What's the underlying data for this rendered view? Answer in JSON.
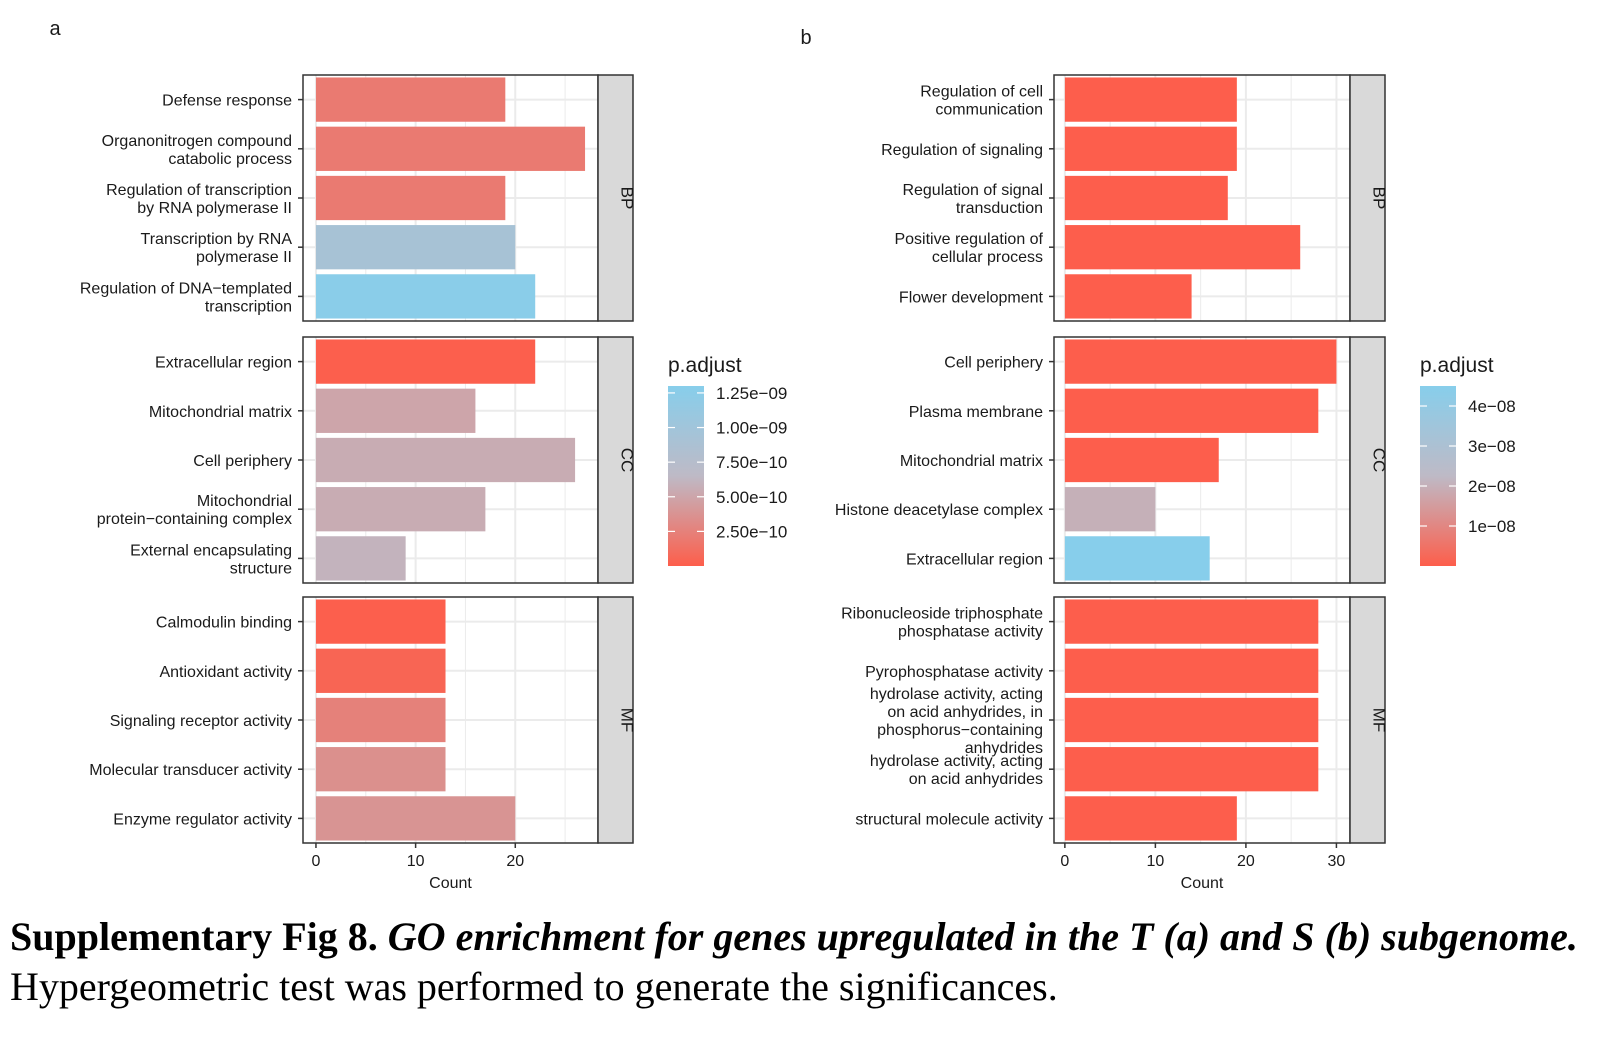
{
  "colors": {
    "low": "#fd5e4b",
    "mid": "#bebac6",
    "high": "#87ceeb",
    "strip": "#d9d9d9",
    "grid": "#ebebeb"
  },
  "caption": {
    "label": "Supplementary Fig 8.",
    "title": "GO enrichment for genes upregulated in the T (a) and S (b) subgenome.",
    "body": "Hypergeometric test was performed to generate the significances."
  },
  "chart_data": [
    {
      "type": "bar",
      "panel_label": "a",
      "orientation": "horizontal",
      "xlabel": "Count",
      "xticks": [
        0,
        10,
        20
      ],
      "xlim": [
        -1.3,
        28.3
      ],
      "grid": true,
      "legend": {
        "title": "p.adjust",
        "placement": "right",
        "range": [
          0,
          1.3e-09
        ],
        "ticks": [
          {
            "value": 1.25e-09,
            "label": "1.25e−09"
          },
          {
            "value": 1e-09,
            "label": "1.00e−09"
          },
          {
            "value": 7.5e-10,
            "label": "7.50e−10"
          },
          {
            "value": 5e-10,
            "label": "5.00e−10"
          },
          {
            "value": 2.5e-10,
            "label": "2.50e−10"
          }
        ]
      },
      "facets": [
        {
          "name": "BP",
          "categories": [
            {
              "label": [
                "Defense response"
              ],
              "count": 19,
              "p_adjust": 2e-10
            },
            {
              "label": [
                "Organonitrogen compound",
                "catabolic process"
              ],
              "count": 27,
              "p_adjust": 2e-10
            },
            {
              "label": [
                "Regulation of transcription",
                "by RNA polymerase II"
              ],
              "count": 19,
              "p_adjust": 2e-10
            },
            {
              "label": [
                "Transcription by RNA",
                "polymerase II"
              ],
              "count": 20,
              "p_adjust": 9.2e-10
            },
            {
              "label": [
                "Regulation of DNA−templated",
                "transcription"
              ],
              "count": 22,
              "p_adjust": 1.26e-09
            }
          ]
        },
        {
          "name": "CC",
          "categories": [
            {
              "label": [
                "Extracellular region"
              ],
              "count": 22,
              "p_adjust": 1e-11
            },
            {
              "label": [
                "Mitochondrial matrix"
              ],
              "count": 16,
              "p_adjust": 5e-10
            },
            {
              "label": [
                "Cell periphery"
              ],
              "count": 26,
              "p_adjust": 5.5e-10
            },
            {
              "label": [
                "Mitochondrial",
                "protein−containing complex"
              ],
              "count": 17,
              "p_adjust": 5.5e-10
            },
            {
              "label": [
                "External encapsulating",
                "structure"
              ],
              "count": 9,
              "p_adjust": 6e-10
            }
          ]
        },
        {
          "name": "MF",
          "categories": [
            {
              "label": [
                "Calmodulin binding"
              ],
              "count": 13,
              "p_adjust": 1e-11
            },
            {
              "label": [
                "Antioxidant activity"
              ],
              "count": 13,
              "p_adjust": 5e-11
            },
            {
              "label": [
                "Signaling receptor activity"
              ],
              "count": 13,
              "p_adjust": 2.5e-10
            },
            {
              "label": [
                "Molecular transducer activity"
              ],
              "count": 13,
              "p_adjust": 3.5e-10
            },
            {
              "label": [
                "Enzyme regulator activity"
              ],
              "count": 20,
              "p_adjust": 3.8e-10
            }
          ]
        }
      ]
    },
    {
      "type": "bar",
      "panel_label": "b",
      "orientation": "horizontal",
      "xlabel": "Count",
      "xticks": [
        0,
        10,
        20,
        30
      ],
      "xlim": [
        -1.2,
        31.5
      ],
      "grid": true,
      "legend": {
        "title": "p.adjust",
        "placement": "right",
        "range": [
          0,
          4.5e-08
        ],
        "ticks": [
          {
            "value": 4e-08,
            "label": "4e−08"
          },
          {
            "value": 3e-08,
            "label": "3e−08"
          },
          {
            "value": 2e-08,
            "label": "2e−08"
          },
          {
            "value": 1e-08,
            "label": "1e−08"
          }
        ]
      },
      "facets": [
        {
          "name": "BP",
          "categories": [
            {
              "label": [
                "Regulation of cell",
                "communication"
              ],
              "count": 19,
              "p_adjust": 1e-10
            },
            {
              "label": [
                "Regulation of signaling"
              ],
              "count": 19,
              "p_adjust": 1e-10
            },
            {
              "label": [
                "Regulation of signal",
                "transduction"
              ],
              "count": 18,
              "p_adjust": 1e-10
            },
            {
              "label": [
                "Positive regulation of",
                "cellular process"
              ],
              "count": 26,
              "p_adjust": 1e-10
            },
            {
              "label": [
                "Flower development"
              ],
              "count": 14,
              "p_adjust": 1e-10
            }
          ]
        },
        {
          "name": "CC",
          "categories": [
            {
              "label": [
                "Cell periphery"
              ],
              "count": 30,
              "p_adjust": 1e-10
            },
            {
              "label": [
                "Plasma membrane"
              ],
              "count": 28,
              "p_adjust": 1e-10
            },
            {
              "label": [
                "Mitochondrial matrix"
              ],
              "count": 17,
              "p_adjust": 1e-10
            },
            {
              "label": [
                "Histone deacetylase complex"
              ],
              "count": 10,
              "p_adjust": 2e-08
            },
            {
              "label": [
                "Extracellular region"
              ],
              "count": 16,
              "p_adjust": 4.5e-08
            }
          ]
        },
        {
          "name": "MF",
          "categories": [
            {
              "label": [
                "Ribonucleoside triphosphate",
                "phosphatase activity"
              ],
              "count": 28,
              "p_adjust": 1e-10
            },
            {
              "label": [
                "Pyrophosphatase activity"
              ],
              "count": 28,
              "p_adjust": 1e-10
            },
            {
              "label": [
                "hydrolase activity, acting",
                "on acid anhydrides, in",
                "phosphorus−containing",
                "anhydrides"
              ],
              "count": 28,
              "p_adjust": 1e-10
            },
            {
              "label": [
                "hydrolase activity, acting",
                "on acid anhydrides"
              ],
              "count": 28,
              "p_adjust": 1e-10
            },
            {
              "label": [
                "structural molecule activity"
              ],
              "count": 19,
              "p_adjust": 1e-10
            }
          ]
        }
      ]
    }
  ]
}
